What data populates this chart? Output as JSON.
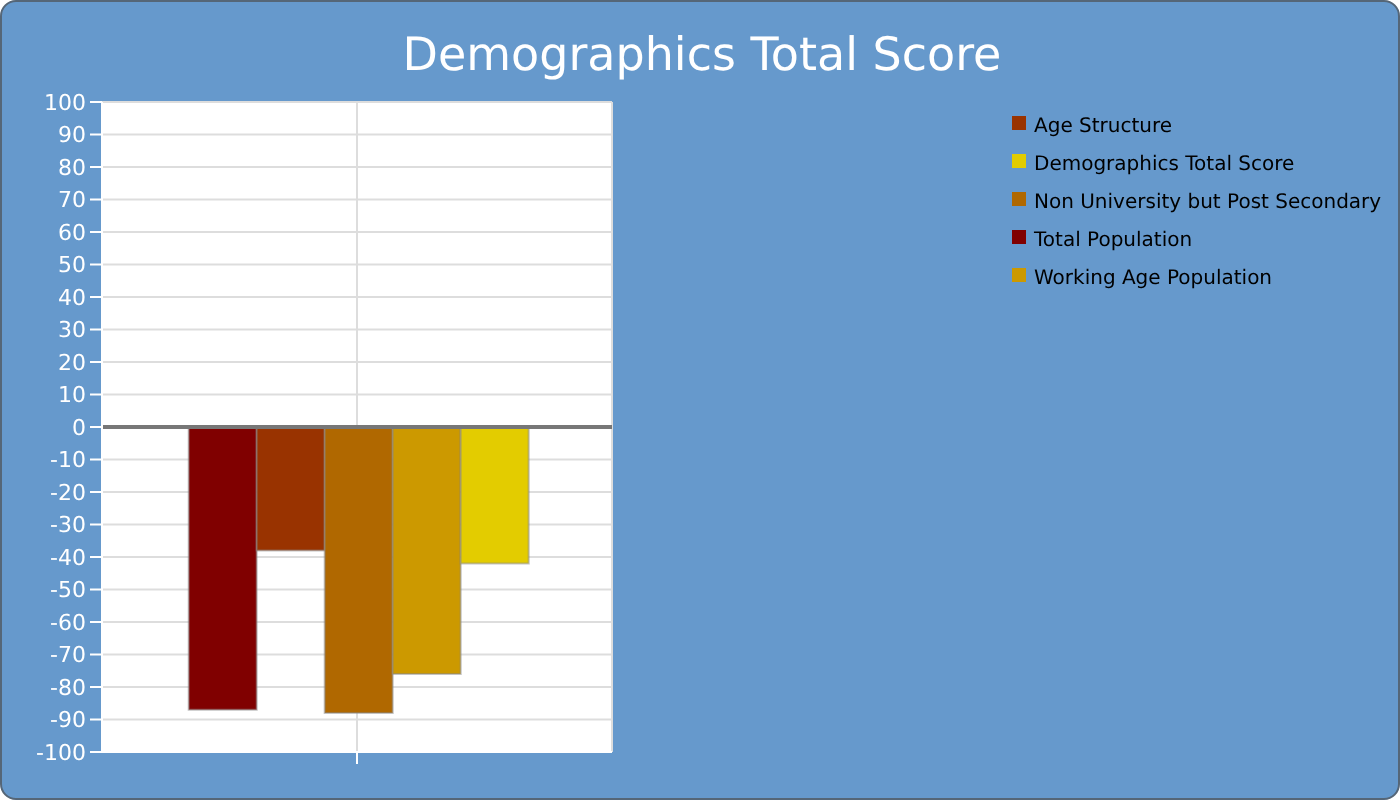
{
  "chart_data": {
    "type": "bar",
    "title": "Demographics Total Score",
    "categories": [
      null
    ],
    "series": [
      {
        "name": "Total Population",
        "color": "#800000",
        "values": [
          -87
        ]
      },
      {
        "name": "Age Structure",
        "color": "#993300",
        "values": [
          -38
        ]
      },
      {
        "name": "Non University but Post Secondary",
        "color": "#b06800",
        "values": [
          -88
        ]
      },
      {
        "name": "Working Age Population",
        "color": "#cc9900",
        "values": [
          -76
        ]
      },
      {
        "name": "Demographics Total Score",
        "color": "#e3cc00",
        "values": [
          -42
        ]
      }
    ],
    "ylim": [
      -100,
      100
    ],
    "yticks": [
      -100,
      -90,
      -80,
      -70,
      -60,
      -50,
      -40,
      -30,
      -20,
      -10,
      0,
      10,
      20,
      30,
      40,
      50,
      60,
      70,
      80,
      90,
      100
    ],
    "ref_lines": [
      {
        "axis": "y",
        "value": 0,
        "color": "#777777"
      }
    ],
    "grid": true,
    "legend": "top right"
  }
}
